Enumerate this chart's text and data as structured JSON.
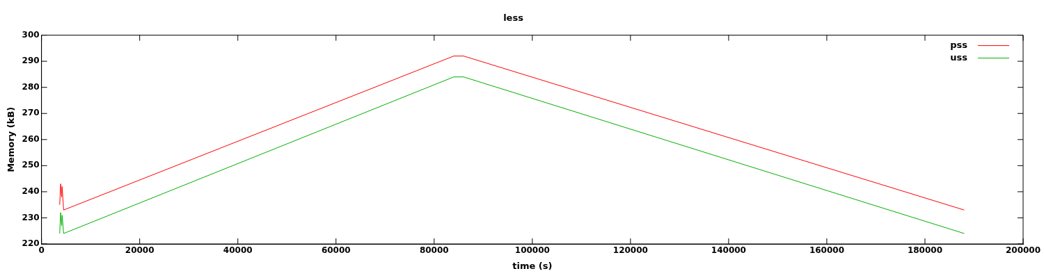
{
  "chart_data": {
    "type": "line",
    "title": "less",
    "xlabel": "time (s)",
    "ylabel": "Memory (kB)",
    "xlim": [
      0,
      200000
    ],
    "xticks": [
      0,
      20000,
      40000,
      60000,
      80000,
      100000,
      120000,
      140000,
      160000,
      180000,
      200000
    ],
    "ylim": [
      220,
      300
    ],
    "yticks": [
      220,
      230,
      240,
      250,
      260,
      270,
      280,
      290,
      300
    ],
    "grid": false,
    "legend": "top right",
    "marker": "none",
    "line_style": "solid",
    "series": [
      {
        "name": "pss",
        "color": "#ff0000",
        "x": [
          3700,
          3900,
          4100,
          4200,
          4500,
          84000,
          86000,
          188000
        ],
        "values": [
          235,
          243,
          238,
          242,
          233,
          292,
          292,
          233
        ]
      },
      {
        "name": "uss",
        "color": "#00b000",
        "x": [
          3700,
          3900,
          4100,
          4200,
          4500,
          84000,
          86000,
          188000
        ],
        "values": [
          224,
          232,
          227,
          231,
          224,
          284,
          284,
          224
        ]
      }
    ]
  }
}
